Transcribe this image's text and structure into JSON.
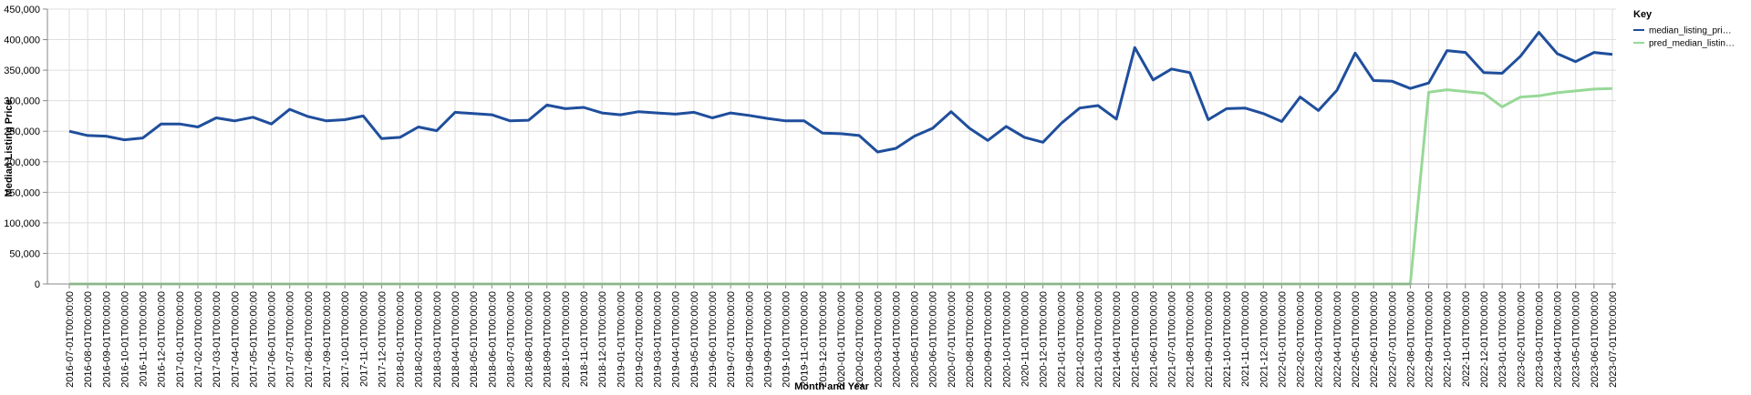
{
  "chart_data": {
    "type": "line",
    "xlabel": "Month and Year",
    "ylabel": "Median Listing Price:",
    "ylim": [
      0,
      450000
    ],
    "yticks": [
      0,
      50000,
      100000,
      150000,
      200000,
      250000,
      300000,
      350000,
      400000,
      450000
    ],
    "ytick_labels": [
      "0",
      "50,000",
      "100,000",
      "150,000",
      "200,000",
      "250,000",
      "300,000",
      "350,000",
      "400,000",
      "450,000"
    ],
    "grid": true,
    "legend": {
      "title": "Key",
      "placement": "right"
    },
    "x": [
      "2016-07-01T00:00:00",
      "2016-08-01T00:00:00",
      "2016-09-01T00:00:00",
      "2016-10-01T00:00:00",
      "2016-11-01T00:00:00",
      "2016-12-01T00:00:00",
      "2017-01-01T00:00:00",
      "2017-02-01T00:00:00",
      "2017-03-01T00:00:00",
      "2017-04-01T00:00:00",
      "2017-05-01T00:00:00",
      "2017-06-01T00:00:00",
      "2017-07-01T00:00:00",
      "2017-08-01T00:00:00",
      "2017-09-01T00:00:00",
      "2017-10-01T00:00:00",
      "2017-11-01T00:00:00",
      "2017-12-01T00:00:00",
      "2018-01-01T00:00:00",
      "2018-02-01T00:00:00",
      "2018-03-01T00:00:00",
      "2018-04-01T00:00:00",
      "2018-05-01T00:00:00",
      "2018-06-01T00:00:00",
      "2018-07-01T00:00:00",
      "2018-08-01T00:00:00",
      "2018-09-01T00:00:00",
      "2018-10-01T00:00:00",
      "2018-11-01T00:00:00",
      "2018-12-01T00:00:00",
      "2019-01-01T00:00:00",
      "2019-02-01T00:00:00",
      "2019-03-01T00:00:00",
      "2019-04-01T00:00:00",
      "2019-05-01T00:00:00",
      "2019-06-01T00:00:00",
      "2019-07-01T00:00:00",
      "2019-08-01T00:00:00",
      "2019-09-01T00:00:00",
      "2019-10-01T00:00:00",
      "2019-11-01T00:00:00",
      "2019-12-01T00:00:00",
      "2020-01-01T00:00:00",
      "2020-02-01T00:00:00",
      "2020-03-01T00:00:00",
      "2020-04-01T00:00:00",
      "2020-05-01T00:00:00",
      "2020-06-01T00:00:00",
      "2020-07-01T00:00:00",
      "2020-08-01T00:00:00",
      "2020-09-01T00:00:00",
      "2020-10-01T00:00:00",
      "2020-11-01T00:00:00",
      "2020-12-01T00:00:00",
      "2021-01-01T00:00:00",
      "2021-02-01T00:00:00",
      "2021-03-01T00:00:00",
      "2021-04-01T00:00:00",
      "2021-05-01T00:00:00",
      "2021-06-01T00:00:00",
      "2021-07-01T00:00:00",
      "2021-08-01T00:00:00",
      "2021-09-01T00:00:00",
      "2021-10-01T00:00:00",
      "2021-11-01T00:00:00",
      "2021-12-01T00:00:00",
      "2022-01-01T00:00:00",
      "2022-02-01T00:00:00",
      "2022-03-01T00:00:00",
      "2022-04-01T00:00:00",
      "2022-05-01T00:00:00",
      "2022-06-01T00:00:00",
      "2022-07-01T00:00:00",
      "2022-08-01T00:00:00",
      "2022-09-01T00:00:00",
      "2022-10-01T00:00:00",
      "2022-11-01T00:00:00",
      "2022-12-01T00:00:00",
      "2023-01-01T00:00:00",
      "2023-02-01T00:00:00",
      "2023-03-01T00:00:00",
      "2023-04-01T00:00:00",
      "2023-05-01T00:00:00",
      "2023-06-01T00:00:00",
      "2023-07-01T00:00:00"
    ],
    "series": [
      {
        "name": "median_listing_pri…",
        "color": "#1f4e9c",
        "values": [
          250000,
          243000,
          242000,
          236000,
          239000,
          262000,
          262000,
          257000,
          272000,
          267000,
          273000,
          262000,
          286000,
          274000,
          267000,
          269000,
          275000,
          238000,
          240000,
          257000,
          251000,
          281000,
          279000,
          277000,
          267000,
          268000,
          293000,
          287000,
          289000,
          280000,
          277000,
          282000,
          280000,
          278000,
          281000,
          272000,
          280000,
          276000,
          271000,
          267000,
          267000,
          247000,
          246000,
          243000,
          216000,
          222000,
          242000,
          255000,
          282000,
          255000,
          235000,
          258000,
          240000,
          232000,
          263000,
          288000,
          292000,
          270000,
          387000,
          334000,
          352000,
          346000,
          269000,
          287000,
          288000,
          279000,
          266000,
          306000,
          284000,
          317000,
          378000,
          333000,
          332000,
          320000,
          329000,
          382000,
          379000,
          346000,
          345000,
          373000,
          412000,
          377000,
          364000,
          379000,
          376000
        ]
      },
      {
        "name": "pred_median_listin…",
        "color": "#98d898",
        "values": [
          0,
          0,
          0,
          0,
          0,
          0,
          0,
          0,
          0,
          0,
          0,
          0,
          0,
          0,
          0,
          0,
          0,
          0,
          0,
          0,
          0,
          0,
          0,
          0,
          0,
          0,
          0,
          0,
          0,
          0,
          0,
          0,
          0,
          0,
          0,
          0,
          0,
          0,
          0,
          0,
          0,
          0,
          0,
          0,
          0,
          0,
          0,
          0,
          0,
          0,
          0,
          0,
          0,
          0,
          0,
          0,
          0,
          0,
          0,
          0,
          0,
          0,
          0,
          0,
          0,
          0,
          0,
          0,
          0,
          0,
          0,
          0,
          0,
          0,
          314000,
          318000,
          315000,
          312000,
          290000,
          306000,
          308000,
          313000,
          316000,
          319000,
          320000
        ]
      }
    ]
  }
}
